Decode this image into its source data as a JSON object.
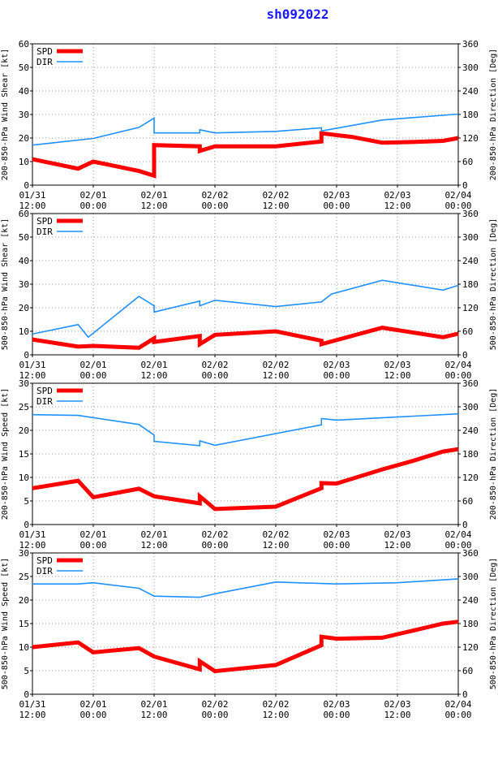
{
  "title": "sh092022",
  "colors": {
    "spd": "#ff0000",
    "dir": "#1e90ff",
    "grid": "#999999"
  },
  "x_ticks": [
    {
      "d": "01/31",
      "t": "12:00"
    },
    {
      "d": "02/01",
      "t": "00:00"
    },
    {
      "d": "02/01",
      "t": "12:00"
    },
    {
      "d": "02/02",
      "t": "00:00"
    },
    {
      "d": "02/02",
      "t": "12:00"
    },
    {
      "d": "02/03",
      "t": "00:00"
    },
    {
      "d": "02/03",
      "t": "12:00"
    },
    {
      "d": "02/04",
      "t": "00:00"
    }
  ],
  "legend": {
    "spd": "SPD",
    "dir": "DIR"
  },
  "chart_data": [
    {
      "type": "line",
      "ylabel_left": "200-850-hPa Wind Shear [kt]",
      "ylabel_right": "200-850-hPa Direction [Deg]",
      "ylim_left": [
        0,
        60
      ],
      "yticks_left": [
        0,
        10,
        20,
        30,
        40,
        50,
        60
      ],
      "ylim_right": [
        0,
        360
      ],
      "yticks_right": [
        0,
        60,
        120,
        180,
        240,
        300,
        360
      ],
      "xlim": [
        0,
        84
      ],
      "grid": true,
      "legend_position": "top-left",
      "series": [
        {
          "name": "SPD",
          "axis": "left",
          "x": [
            0,
            9,
            12,
            21,
            24,
            24,
            33,
            33,
            36,
            48,
            57,
            57,
            63,
            69,
            75,
            81,
            84
          ],
          "y": [
            11,
            7,
            10,
            6,
            4,
            17,
            16.5,
            14.5,
            16.5,
            16.5,
            18.5,
            22,
            20.5,
            18,
            18.3,
            18.8,
            20
          ]
        },
        {
          "name": "DIR",
          "axis": "right",
          "x": [
            0,
            12,
            21,
            24,
            24,
            33,
            33,
            36,
            48,
            57,
            57,
            69,
            84
          ],
          "y": [
            102,
            119,
            147,
            171,
            133,
            133,
            141,
            133,
            137,
            146,
            138,
            166,
            181
          ]
        }
      ]
    },
    {
      "type": "line",
      "ylabel_left": "500-850-hPa Wind Shear [kt]",
      "ylabel_right": "500-850-hPa Direction [Deg]",
      "ylim_left": [
        0,
        60
      ],
      "yticks_left": [
        0,
        10,
        20,
        30,
        40,
        50,
        60
      ],
      "ylim_right": [
        0,
        360
      ],
      "yticks_right": [
        0,
        60,
        120,
        180,
        240,
        300,
        360
      ],
      "xlim": [
        0,
        84
      ],
      "grid": true,
      "legend_position": "top-left",
      "series": [
        {
          "name": "SPD",
          "axis": "left",
          "x": [
            0,
            9,
            12,
            21,
            24,
            24,
            33,
            33,
            36,
            48,
            57,
            57,
            69,
            81,
            84
          ],
          "y": [
            6.5,
            3.5,
            3.8,
            3,
            7,
            5.5,
            8,
            4.5,
            8.5,
            10,
            6,
            4.5,
            11.5,
            7.5,
            9
          ]
        },
        {
          "name": "DIR",
          "axis": "right",
          "x": [
            0,
            9,
            11,
            21,
            24,
            24,
            33,
            33,
            36,
            48,
            57,
            59,
            69,
            81,
            84
          ],
          "y": [
            53,
            77,
            45,
            149,
            125,
            109,
            137,
            125,
            139,
            123,
            135,
            155,
            190,
            165,
            177
          ]
        }
      ]
    },
    {
      "type": "line",
      "ylabel_left": "200-850-hPa Wind Speed [kt]",
      "ylabel_right": "200-850-hPa Direction [Deg]",
      "ylim_left": [
        0,
        30
      ],
      "yticks_left": [
        0,
        5,
        10,
        15,
        20,
        25,
        30
      ],
      "ylim_right": [
        0,
        360
      ],
      "yticks_right": [
        0,
        60,
        120,
        180,
        240,
        300,
        360
      ],
      "xlim": [
        0,
        84
      ],
      "grid": true,
      "legend_position": "top-left",
      "series": [
        {
          "name": "SPD",
          "axis": "left",
          "x": [
            0,
            9,
            12,
            21,
            24,
            33,
            33,
            36,
            48,
            57,
            57,
            60,
            69,
            75,
            81,
            84
          ],
          "y": [
            7.7,
            9.3,
            5.8,
            7.6,
            6,
            4.5,
            6,
            3.3,
            3.8,
            7.7,
            8.8,
            8.7,
            11.7,
            13.5,
            15.5,
            16
          ]
        },
        {
          "name": "DIR",
          "axis": "right",
          "x": [
            0,
            9,
            21,
            24,
            24,
            33,
            33,
            36,
            57,
            57,
            60,
            84
          ],
          "y": [
            280,
            278,
            255,
            228,
            212,
            201,
            213,
            202,
            254,
            270,
            266,
            282
          ]
        }
      ]
    },
    {
      "type": "line",
      "ylabel_left": "500-850-hPa Wind Speed [kt]",
      "ylabel_right": "500-850-hPa Direction [Deg]",
      "ylim_left": [
        0,
        30
      ],
      "yticks_left": [
        0,
        5,
        10,
        15,
        20,
        25,
        30
      ],
      "ylim_right": [
        0,
        360
      ],
      "yticks_right": [
        0,
        60,
        120,
        180,
        240,
        300,
        360
      ],
      "xlim": [
        0,
        84
      ],
      "grid": true,
      "legend_position": "top-left",
      "series": [
        {
          "name": "SPD",
          "axis": "left",
          "x": [
            0,
            9,
            12,
            21,
            24,
            33,
            33,
            36,
            48,
            57,
            57,
            60,
            69,
            81,
            84
          ],
          "y": [
            10,
            11,
            8.9,
            9.8,
            8,
            5.3,
            7,
            4.9,
            6.2,
            10.4,
            12.2,
            11.8,
            12,
            15,
            15.4
          ]
        },
        {
          "name": "DIR",
          "axis": "right",
          "x": [
            0,
            9,
            12,
            21,
            24,
            33,
            36,
            48,
            60,
            72,
            84
          ],
          "y": [
            281,
            281,
            284,
            270,
            250,
            247,
            256,
            286,
            281,
            284,
            294
          ]
        }
      ]
    }
  ]
}
